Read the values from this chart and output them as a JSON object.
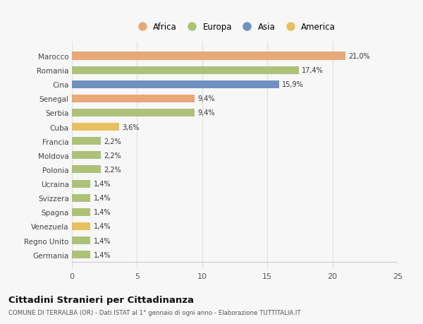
{
  "countries": [
    "Germania",
    "Regno Unito",
    "Venezuela",
    "Spagna",
    "Svizzera",
    "Ucraina",
    "Polonia",
    "Moldova",
    "Francia",
    "Cuba",
    "Serbia",
    "Senegal",
    "Cina",
    "Romania",
    "Marocco"
  ],
  "values": [
    1.4,
    1.4,
    1.4,
    1.4,
    1.4,
    1.4,
    2.2,
    2.2,
    2.2,
    3.6,
    9.4,
    9.4,
    15.9,
    17.4,
    21.0
  ],
  "labels": [
    "1,4%",
    "1,4%",
    "1,4%",
    "1,4%",
    "1,4%",
    "1,4%",
    "2,2%",
    "2,2%",
    "2,2%",
    "3,6%",
    "9,4%",
    "9,4%",
    "15,9%",
    "17,4%",
    "21,0%"
  ],
  "colors": [
    "#adc178",
    "#adc178",
    "#e8c060",
    "#adc178",
    "#adc178",
    "#adc178",
    "#adc178",
    "#adc178",
    "#adc178",
    "#e8c060",
    "#adc178",
    "#e8a878",
    "#7090c0",
    "#adc178",
    "#e8a878"
  ],
  "legend_labels": [
    "Africa",
    "Europa",
    "Asia",
    "America"
  ],
  "legend_colors": [
    "#e8a878",
    "#adc178",
    "#7090c0",
    "#e8c060"
  ],
  "title": "Cittadini Stranieri per Cittadinanza",
  "subtitle": "COMUNE DI TERRALBA (OR) - Dati ISTAT al 1° gennaio di ogni anno - Elaborazione TUTTITALIA.IT",
  "xlim": [
    0,
    25
  ],
  "xticks": [
    0,
    5,
    10,
    15,
    20,
    25
  ],
  "background_color": "#f7f7f7",
  "grid_color": "#e0e0e0",
  "bar_height": 0.55
}
